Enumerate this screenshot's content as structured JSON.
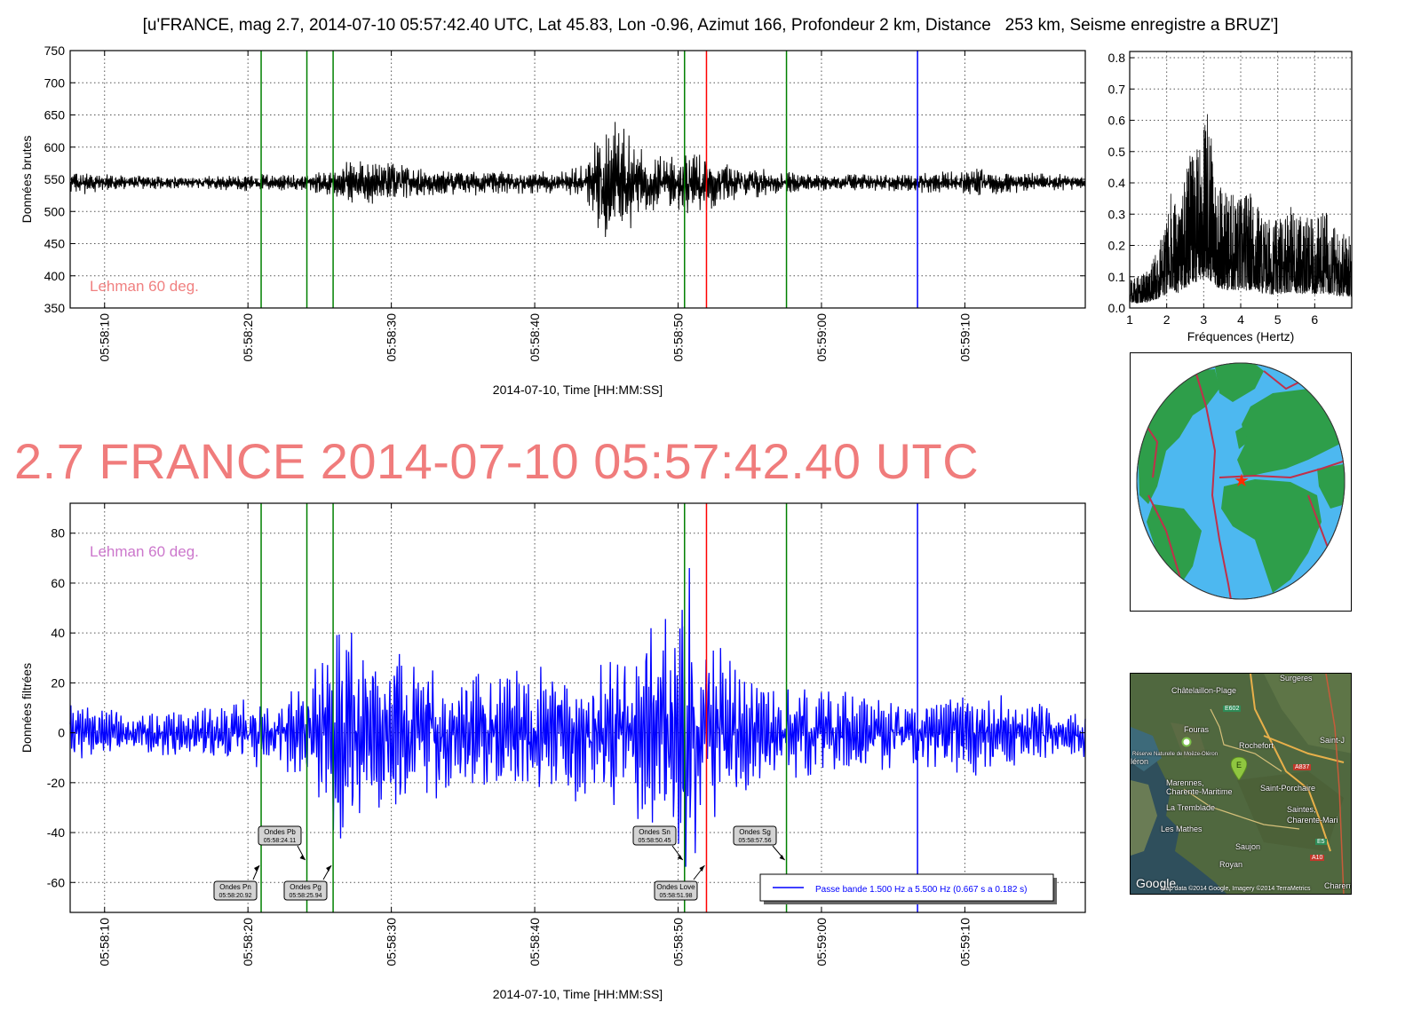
{
  "header": {
    "title": "[u'FRANCE, mag 2.7, 2014-07-10 05:57:42.40 UTC, Lat 45.83, Lon -0.96, Azimut 166, Profondeur 2 km, Distance   253 km, Seisme enregistre a BRUZ']",
    "big_title": "2.7 FRANCE 2014-07-10 05:57:42.40 UTC"
  },
  "colors": {
    "raw_trace": "#000000",
    "filtered_trace": "#0000ff",
    "phase_line": "#008000",
    "red_line": "#ff0000",
    "blue_line": "#0000ff",
    "big_title": "#f07c7c",
    "lehman_top": "#f08080",
    "lehman_bottom": "#cc77cc",
    "ocean": "#4db8f0",
    "land": "#2e9e4a",
    "plate_boundary": "#c0304a"
  },
  "chart_data": [
    {
      "type": "line",
      "panel": "raw",
      "ylabel": "Données brutes",
      "xlabel": "2014-07-10, Time [HH:MM:SS]",
      "x_unit": "seconds after 05:58:00",
      "xlim": [
        7.6,
        78.4
      ],
      "ylim": [
        350,
        750
      ],
      "yticks": [
        350,
        400,
        450,
        500,
        550,
        600,
        650,
        700,
        750
      ],
      "xticks": [
        10,
        20,
        30,
        40,
        50,
        60,
        70
      ],
      "xtick_labels": [
        "05:58:10",
        "05:58:20",
        "05:58:30",
        "05:58:40",
        "05:58:50",
        "05:59:00",
        "05:59:10"
      ],
      "grid": true,
      "annotation": "Lehman 60 deg.",
      "vertical_lines": [
        {
          "t": 20.92,
          "color": "green"
        },
        {
          "t": 24.11,
          "color": "green"
        },
        {
          "t": 25.94,
          "color": "green"
        },
        {
          "t": 50.45,
          "color": "green"
        },
        {
          "t": 51.98,
          "color": "red"
        },
        {
          "t": 57.56,
          "color": "green"
        },
        {
          "t": 66.7,
          "color": "blue"
        }
      ],
      "series": [
        {
          "baseline": 545,
          "envelope": [
            [
              7.6,
              14
            ],
            [
              9,
              18
            ],
            [
              10,
              12
            ],
            [
              12,
              10
            ],
            [
              14,
              9
            ],
            [
              16,
              8
            ],
            [
              18,
              10
            ],
            [
              20,
              12
            ],
            [
              22,
              13
            ],
            [
              24,
              10
            ],
            [
              26,
              26
            ],
            [
              28,
              32
            ],
            [
              30,
              28
            ],
            [
              32,
              20
            ],
            [
              34,
              18
            ],
            [
              36,
              18
            ],
            [
              38,
              16
            ],
            [
              40,
              15
            ],
            [
              42,
              18
            ],
            [
              43.5,
              25
            ],
            [
              44.3,
              60
            ],
            [
              45,
              95
            ],
            [
              46,
              80
            ],
            [
              47,
              55
            ],
            [
              48,
              42
            ],
            [
              49,
              38
            ],
            [
              50,
              40
            ],
            [
              51,
              50
            ],
            [
              52,
              42
            ],
            [
              53,
              30
            ],
            [
              54,
              24
            ],
            [
              56,
              20
            ],
            [
              58,
              14
            ],
            [
              60,
              12
            ],
            [
              62,
              13
            ],
            [
              64,
              12
            ],
            [
              66,
              12
            ],
            [
              67,
              16
            ],
            [
              68,
              15
            ],
            [
              70,
              18
            ],
            [
              71,
              20
            ],
            [
              73,
              16
            ],
            [
              75,
              14
            ],
            [
              78.4,
              10
            ]
          ]
        }
      ]
    },
    {
      "type": "line",
      "panel": "spectrum",
      "xlabel": "Fréquences (Hertz)",
      "xlim": [
        1,
        7
      ],
      "ylim": [
        0,
        0.82
      ],
      "xticks": [
        1,
        2,
        3,
        4,
        5,
        6
      ],
      "yticks": [
        0.0,
        0.1,
        0.2,
        0.3,
        0.4,
        0.5,
        0.6,
        0.7,
        0.8
      ],
      "grid": true,
      "series": [
        {
          "envelope": [
            [
              1,
              0.09
            ],
            [
              1.5,
              0.12
            ],
            [
              1.8,
              0.2
            ],
            [
              2,
              0.3
            ],
            [
              2.1,
              0.42
            ],
            [
              2.3,
              0.3
            ],
            [
              2.6,
              0.48
            ],
            [
              2.9,
              0.55
            ],
            [
              3.0,
              0.58
            ],
            [
              3.1,
              0.65
            ],
            [
              3.3,
              0.45
            ],
            [
              3.6,
              0.38
            ],
            [
              4,
              0.36
            ],
            [
              4.3,
              0.38
            ],
            [
              4.6,
              0.3
            ],
            [
              5,
              0.28
            ],
            [
              5.3,
              0.34
            ],
            [
              5.6,
              0.3
            ],
            [
              6,
              0.28
            ],
            [
              6.3,
              0.32
            ],
            [
              6.6,
              0.25
            ],
            [
              7,
              0.24
            ]
          ]
        }
      ]
    },
    {
      "type": "line",
      "panel": "filtered",
      "ylabel": "Données filtrées",
      "xlabel": "2014-07-10, Time [HH:MM:SS]",
      "x_unit": "seconds after 05:58:00",
      "xlim": [
        7.6,
        78.4
      ],
      "ylim": [
        -72,
        92
      ],
      "yticks": [
        -60,
        -40,
        -20,
        0,
        20,
        40,
        60,
        80
      ],
      "xticks": [
        10,
        20,
        30,
        40,
        50,
        60,
        70
      ],
      "xtick_labels": [
        "05:58:10",
        "05:58:20",
        "05:58:30",
        "05:58:40",
        "05:58:50",
        "05:59:00",
        "05:59:10"
      ],
      "grid": true,
      "annotation": "Lehman 60 deg.",
      "legend": {
        "label": "Passe bande 1.500 Hz a 5.500 Hz (0.667 s a 0.182 s)",
        "loc": "lower-right"
      },
      "vertical_lines": [
        {
          "t": 20.92,
          "color": "green"
        },
        {
          "t": 24.11,
          "color": "green"
        },
        {
          "t": 25.94,
          "color": "green"
        },
        {
          "t": 50.45,
          "color": "green"
        },
        {
          "t": 51.98,
          "color": "red"
        },
        {
          "t": 57.56,
          "color": "green"
        },
        {
          "t": 66.7,
          "color": "blue"
        }
      ],
      "phase_labels": [
        {
          "name": "Ondes Pn",
          "time": "05:58:20.92",
          "t": 20.92
        },
        {
          "name": "Ondes Pb",
          "time": "05:58:24.11",
          "t": 24.11
        },
        {
          "name": "Ondes Pg",
          "time": "05:58:25.94",
          "t": 25.94
        },
        {
          "name": "Ondes Sn",
          "time": "05:58:50.45",
          "t": 50.45
        },
        {
          "name": "Ondes Love",
          "time": "05:58:51.98",
          "t": 51.98
        },
        {
          "name": "Ondes Sg",
          "time": "05:58:57.56",
          "t": 57.56
        }
      ],
      "series": [
        {
          "name": "Passe bande 1.500 Hz a 5.500 Hz (0.667 s a 0.182 s)",
          "envelope": [
            [
              7.6,
              10
            ],
            [
              10,
              9
            ],
            [
              12,
              8
            ],
            [
              14,
              8
            ],
            [
              16,
              9
            ],
            [
              18,
              10
            ],
            [
              20,
              12
            ],
            [
              22,
              14
            ],
            [
              24,
              16
            ],
            [
              25,
              26
            ],
            [
              26,
              35
            ],
            [
              27,
              42
            ],
            [
              28,
              40
            ],
            [
              29,
              35
            ],
            [
              30,
              30
            ],
            [
              32,
              26
            ],
            [
              34,
              22
            ],
            [
              36,
              22
            ],
            [
              38,
              22
            ],
            [
              40,
              24
            ],
            [
              42,
              26
            ],
            [
              44,
              27
            ],
            [
              46,
              28
            ],
            [
              47,
              34
            ],
            [
              48,
              38
            ],
            [
              49,
              40
            ],
            [
              50,
              44
            ],
            [
              50.8,
              58
            ],
            [
              51.3,
              46
            ],
            [
              52,
              36
            ],
            [
              53,
              30
            ],
            [
              54,
              26
            ],
            [
              56,
              22
            ],
            [
              58,
              18
            ],
            [
              60,
              15
            ],
            [
              62,
              15
            ],
            [
              64,
              14
            ],
            [
              66,
              12
            ],
            [
              68,
              13
            ],
            [
              70,
              16
            ],
            [
              72,
              15
            ],
            [
              74,
              12
            ],
            [
              76,
              10
            ],
            [
              78.4,
              9
            ]
          ]
        }
      ]
    }
  ],
  "maps": {
    "globe_name": "world-globe-map",
    "regional": {
      "places": [
        "Surgeres",
        "Châtelaillon-Plage",
        "Fouras",
        "Rochefort",
        "Saint-J",
        "Réserve Naturelle de Moëze-Oléron",
        "Marennes,",
        "Charente-Maritime",
        "Saint-Porchaire",
        "La Tremblade",
        "Saintes,",
        "Charente-Mari",
        "Les Mathes",
        "Saujon",
        "Royan",
        "Charente",
        "léron"
      ],
      "roads": [
        "E602",
        "A837",
        "E5",
        "A10"
      ],
      "attribution": "Map data ©2014 Google, Imagery ©2014 TerraMetrics",
      "logo": "Google",
      "marker_letter": "E"
    }
  }
}
